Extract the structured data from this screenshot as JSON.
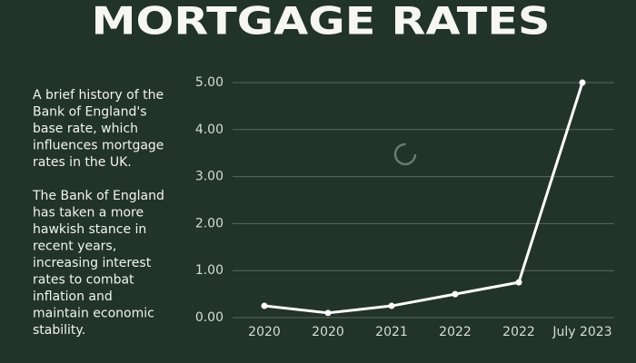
{
  "chart_data": {
    "type": "line",
    "title": "MORTGAGE RATES",
    "description": [
      [
        "A brief history of the",
        "Bank of England's",
        "base rate, which",
        "influences mortgage",
        "rates in the UK."
      ],
      [
        "The Bank of England",
        "has taken a more",
        "hawkish stance in",
        "recent years,",
        "increasing interest",
        "rates to combat",
        "inflation and",
        "maintain economic",
        "stability."
      ]
    ],
    "categories": [
      "2020",
      "2020",
      "2021",
      "2022",
      "2022",
      "July 2023"
    ],
    "values": [
      0.25,
      0.1,
      0.25,
      0.5,
      0.75,
      5.0
    ],
    "color": "#ffffff",
    "ylim": [
      0,
      5
    ],
    "yticks": [
      {
        "value": 0,
        "label": "0.00"
      },
      {
        "value": 1,
        "label": "1.00"
      },
      {
        "value": 2,
        "label": "2.00"
      },
      {
        "value": 3,
        "label": "3.00"
      },
      {
        "value": 4,
        "label": "4.00"
      },
      {
        "value": 5,
        "label": "5.00"
      }
    ],
    "grid": true
  }
}
